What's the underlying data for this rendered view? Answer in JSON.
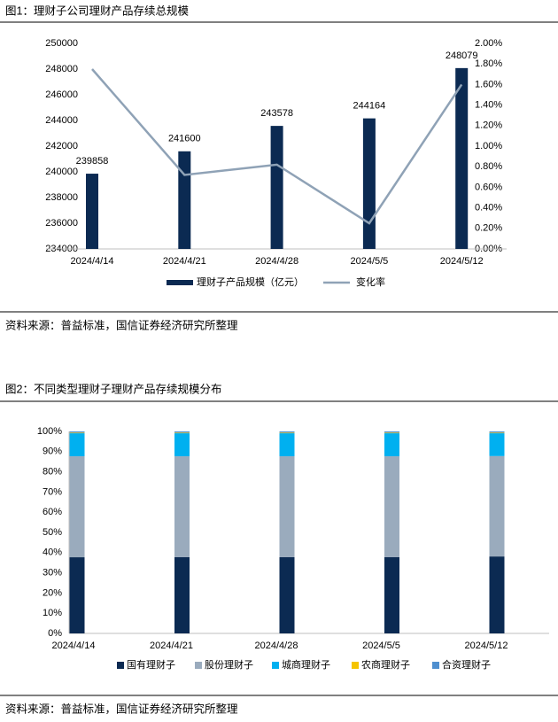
{
  "chart_data": [
    {
      "type": "combo",
      "title": "图1：理财子公司理财产品存续总规模",
      "source": "资料来源：普益标准，国信证券经济研究所整理",
      "categories": [
        "2024/4/14",
        "2024/4/21",
        "2024/4/28",
        "2024/5/5",
        "2024/5/12"
      ],
      "series": [
        {
          "name": "理财子产品规模（亿元）",
          "color": "#0b2a52",
          "kind": "bar",
          "values": [
            239858,
            241600,
            243578,
            244164,
            248079
          ]
        },
        {
          "name": "变化率",
          "color": "#8fa2b6",
          "kind": "line",
          "axis": "y2",
          "values": [
            1.75,
            0.72,
            0.82,
            0.25,
            1.6
          ]
        }
      ],
      "ylim": [
        234000,
        250000
      ],
      "yticks": [
        234000,
        236000,
        238000,
        240000,
        242000,
        244000,
        246000,
        248000,
        250000
      ],
      "y2lim": [
        0,
        2
      ],
      "y2ticks": [
        {
          "value": 0,
          "label": "0.00%"
        },
        {
          "value": 0.2,
          "label": "0.20%"
        },
        {
          "value": 0.4,
          "label": "0.40%"
        },
        {
          "value": 0.6,
          "label": "0.60%"
        },
        {
          "value": 0.8,
          "label": "0.80%"
        },
        {
          "value": 1.0,
          "label": "1.00%"
        },
        {
          "value": 1.2,
          "label": "1.20%"
        },
        {
          "value": 1.4,
          "label": "1.40%"
        },
        {
          "value": 1.6,
          "label": "1.60%"
        },
        {
          "value": 1.8,
          "label": "1.80%"
        },
        {
          "value": 2.0,
          "label": "2.00%"
        }
      ]
    },
    {
      "type": "stacked",
      "title": "图2：不同类型理财子理财产品存续规模分布",
      "source": "资料来源：普益标准，国信证券经济研究所整理",
      "categories": [
        "2024/4/14",
        "2024/4/21",
        "2024/4/28",
        "2024/5/5",
        "2024/5/12"
      ],
      "series": [
        {
          "name": "国有理财子",
          "color": "#0b2a52",
          "values": [
            37.7,
            37.8,
            37.8,
            37.8,
            38.1
          ]
        },
        {
          "name": "股份理财子",
          "color": "#9aabbd",
          "values": [
            50.0,
            49.9,
            49.9,
            49.9,
            49.7
          ]
        },
        {
          "name": "城商理财子",
          "color": "#00b0f0",
          "values": [
            11.4,
            11.4,
            11.4,
            11.4,
            11.3
          ]
        },
        {
          "name": "农商理财子",
          "color": "#f5c400",
          "values": [
            0.3,
            0.3,
            0.3,
            0.3,
            0.3
          ]
        },
        {
          "name": "合资理财子",
          "color": "#4f8fcf",
          "values": [
            0.6,
            0.6,
            0.6,
            0.6,
            0.6
          ]
        }
      ],
      "ylim": [
        0,
        100
      ],
      "yticks": [
        {
          "value": 0,
          "label": "0%"
        },
        {
          "value": 10,
          "label": "10%"
        },
        {
          "value": 20,
          "label": "20%"
        },
        {
          "value": 30,
          "label": "30%"
        },
        {
          "value": 40,
          "label": "40%"
        },
        {
          "value": 50,
          "label": "50%"
        },
        {
          "value": 60,
          "label": "60%"
        },
        {
          "value": 70,
          "label": "70%"
        },
        {
          "value": 80,
          "label": "80%"
        },
        {
          "value": 90,
          "label": "90%"
        },
        {
          "value": 100,
          "label": "100%"
        }
      ]
    }
  ]
}
